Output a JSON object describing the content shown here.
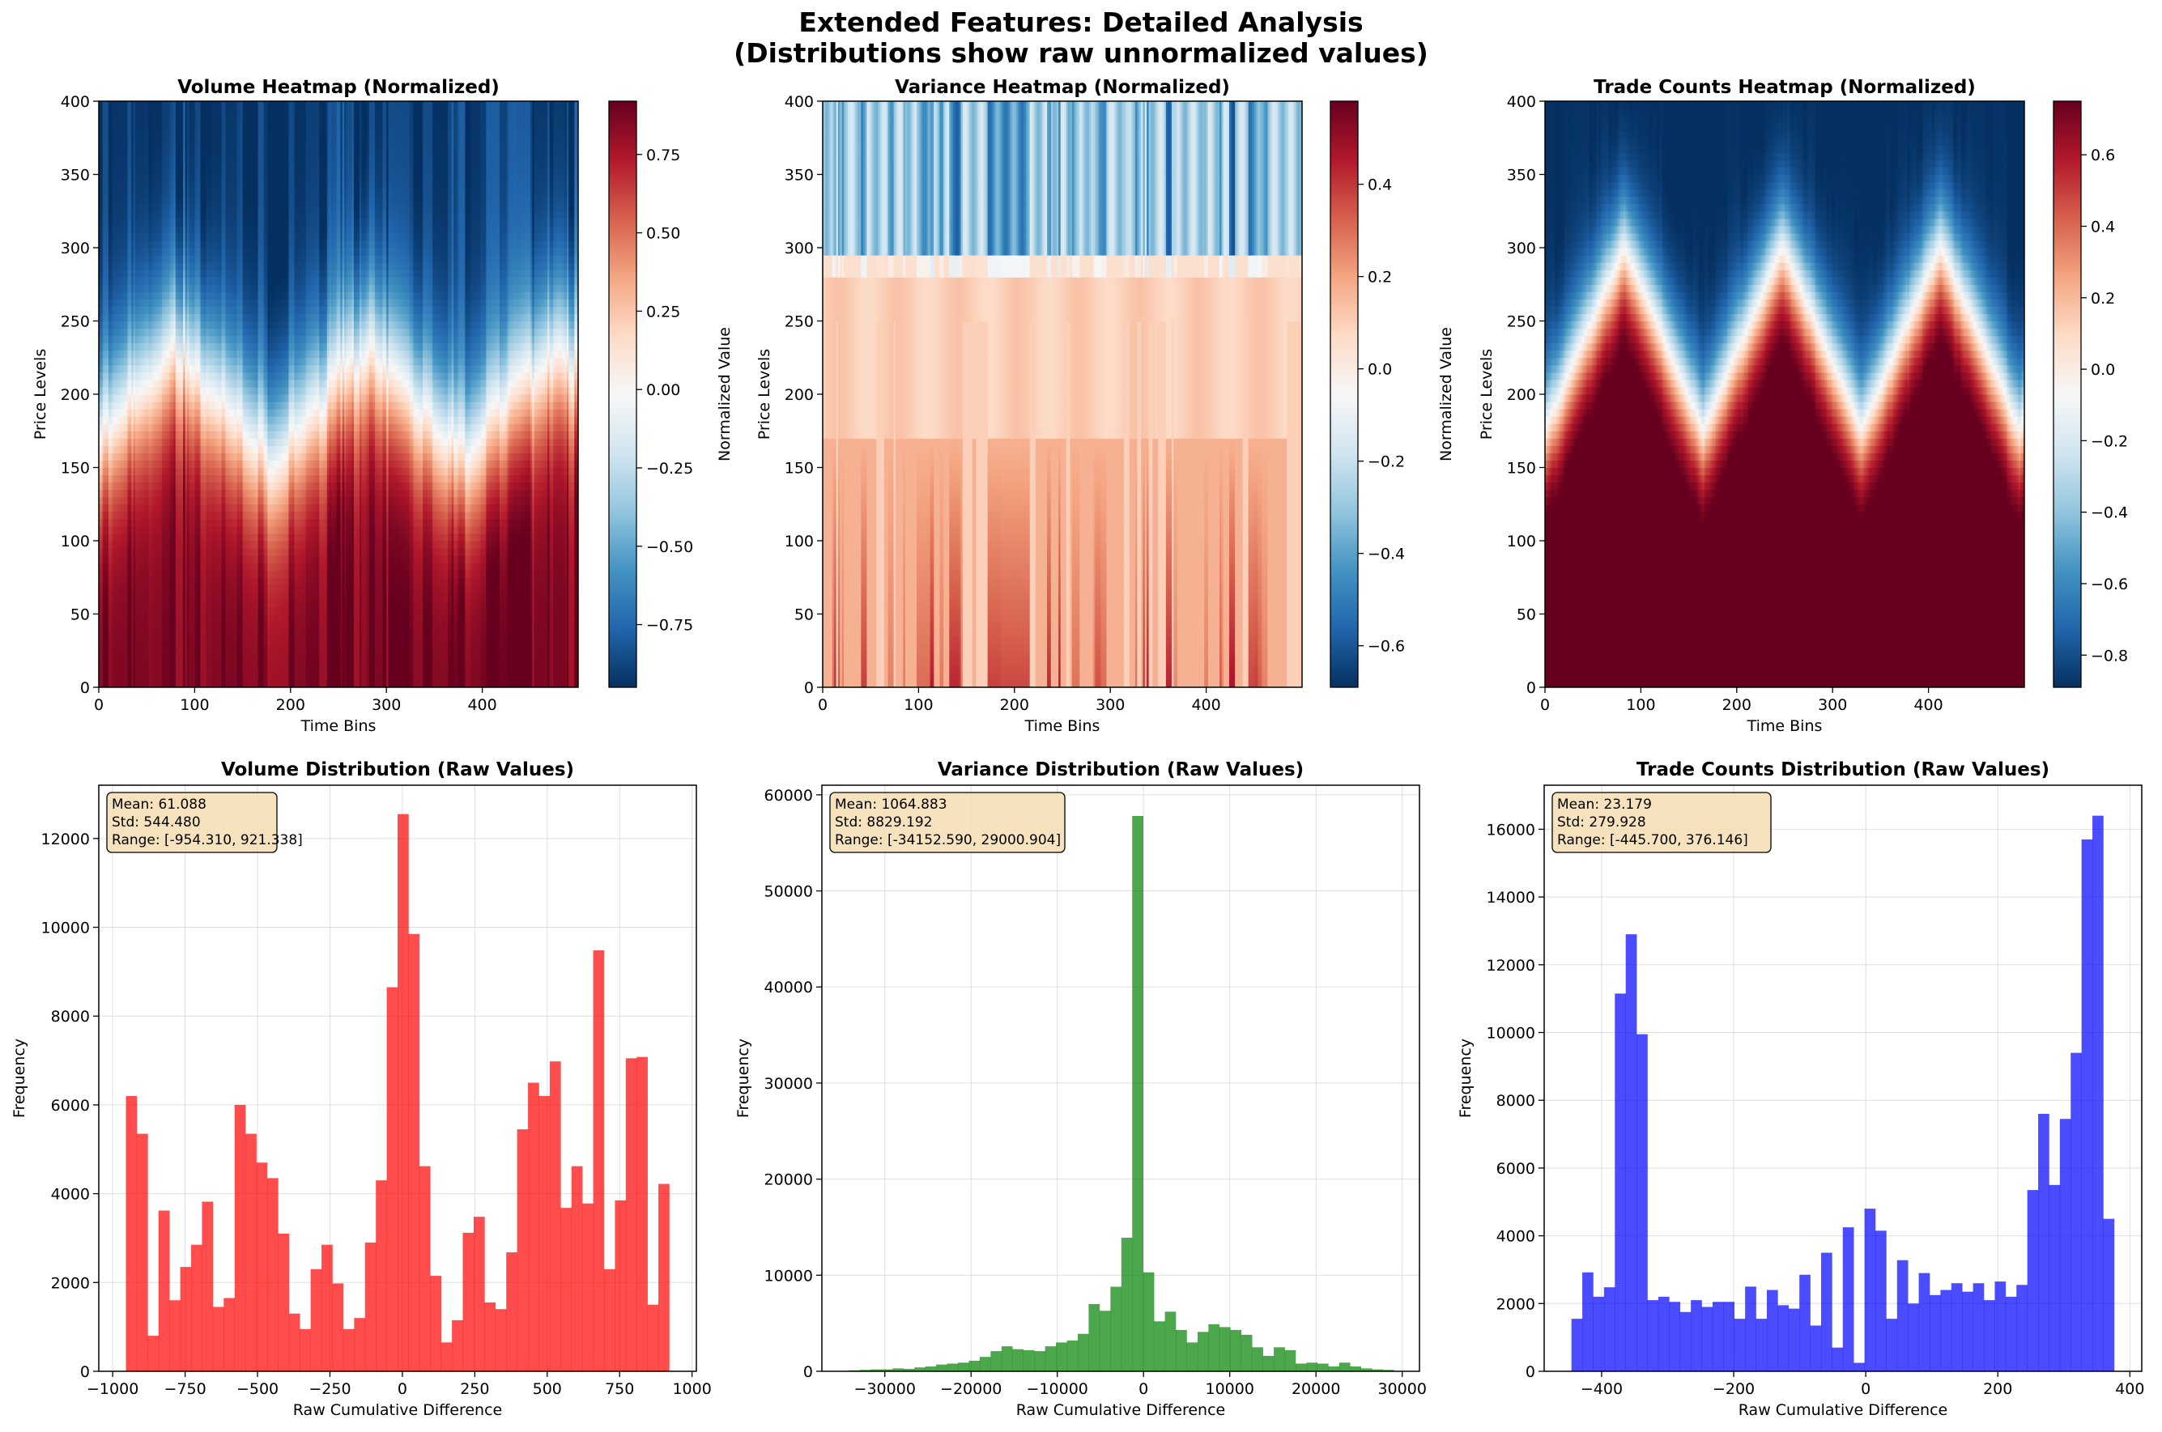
{
  "figure": {
    "title_line1": "Extended Features: Detailed Analysis",
    "title_line2": "(Distributions show raw unnormalized values)"
  },
  "colors": {
    "volume": "#ff0000",
    "variance": "#008000",
    "trade_counts": "#0000ff",
    "stats_box_fill": "#f5deb3",
    "colormap": "RdBu_r"
  },
  "heatmaps": [
    {
      "key": "volume",
      "title": "Volume Heatmap (Normalized)",
      "xlabel": "Time Bins",
      "ylabel": "Price Levels",
      "colorbar_label": "Normalized Value",
      "xlim": [
        0,
        500
      ],
      "ylim": [
        0,
        400
      ],
      "xticks": [
        0,
        100,
        200,
        300,
        400
      ],
      "yticks": [
        0,
        50,
        100,
        150,
        200,
        250,
        300,
        350,
        400
      ],
      "vmin": -0.95,
      "vmax": 0.92,
      "cbar_ticks": [
        -0.75,
        -0.5,
        -0.25,
        0.0,
        0.25,
        0.5,
        0.75
      ],
      "cbar_tick_labels": [
        "−0.75",
        "−0.50",
        "−0.25",
        "0.00",
        "0.25",
        "0.50",
        "0.75"
      ],
      "pattern": {
        "mode": "wave",
        "period": 200,
        "phase": 0.1,
        "center": 195,
        "amp": 38,
        "width": 95,
        "noise": 0.5,
        "seed": 11
      }
    },
    {
      "key": "variance",
      "title": "Variance Heatmap (Normalized)",
      "xlabel": "Time Bins",
      "ylabel": "Price Levels",
      "colorbar_label": "Normalized Value",
      "xlim": [
        0,
        500
      ],
      "ylim": [
        0,
        400
      ],
      "xticks": [
        0,
        100,
        200,
        300,
        400
      ],
      "yticks": [
        0,
        50,
        100,
        150,
        200,
        250,
        300,
        350,
        400
      ],
      "vmin": -0.69,
      "vmax": 0.58,
      "cbar_ticks": [
        -0.6,
        -0.4,
        -0.2,
        0.0,
        0.2,
        0.4
      ],
      "cbar_tick_labels": [
        "−0.6",
        "−0.4",
        "−0.2",
        "0.0",
        "0.2",
        "0.4"
      ],
      "pattern": {
        "mode": "variance",
        "period": 200,
        "phase": 0.1,
        "center": 250,
        "amp": 30,
        "width": 90,
        "noise": 0.6,
        "seed": 23
      }
    },
    {
      "key": "trade_counts",
      "title": "Trade Counts Heatmap (Normalized)",
      "xlabel": "Time Bins",
      "ylabel": "Price Levels",
      "colorbar_label": "Normalized Value",
      "xlim": [
        0,
        500
      ],
      "ylim": [
        0,
        400
      ],
      "xticks": [
        0,
        100,
        200,
        300,
        400
      ],
      "yticks": [
        0,
        50,
        100,
        150,
        200,
        250,
        300,
        350,
        400
      ],
      "vmin": -0.89,
      "vmax": 0.75,
      "cbar_ticks": [
        -0.8,
        -0.6,
        -0.4,
        -0.2,
        0.0,
        0.2,
        0.4,
        0.6
      ],
      "cbar_tick_labels": [
        "−0.8",
        "−0.6",
        "−0.4",
        "−0.2",
        "0.0",
        "0.2",
        "0.4",
        "0.6"
      ],
      "pattern": {
        "mode": "smooth",
        "period": 165,
        "phase": 0.0,
        "center": 235,
        "amp": 62,
        "width": 70,
        "noise": 0.08,
        "seed": 5
      }
    }
  ],
  "chart_data": [
    {
      "type": "bar",
      "title": "Volume Distribution (Raw Values)",
      "xlabel": "Raw Cumulative Difference",
      "ylabel": "Frequency",
      "color": "#ff0000",
      "xlim": [
        -1048,
        1015
      ],
      "ylim": [
        0,
        13200
      ],
      "xticks": [
        -1000,
        -750,
        -500,
        -250,
        0,
        250,
        500,
        750,
        1000
      ],
      "xtick_labels": [
        "−1000",
        "−750",
        "−500",
        "−250",
        "0",
        "250",
        "500",
        "750",
        "1000"
      ],
      "yticks": [
        0,
        2000,
        4000,
        6000,
        8000,
        10000,
        12000
      ],
      "ytick_labels": [
        "0",
        "2000",
        "4000",
        "6000",
        "8000",
        "10000",
        "12000"
      ],
      "bin_start": -954.31,
      "bin_end": 921.338,
      "values": [
        6200,
        5350,
        800,
        3620,
        1600,
        2350,
        2850,
        3820,
        1450,
        1650,
        6000,
        5350,
        4700,
        4350,
        3100,
        1300,
        950,
        2300,
        2850,
        1980,
        950,
        1200,
        2900,
        4300,
        8650,
        12550,
        9850,
        4620,
        2150,
        650,
        1150,
        3120,
        3480,
        1550,
        1400,
        2680,
        5450,
        6500,
        6200,
        6980,
        3680,
        4620,
        3780,
        9480,
        2300,
        3850,
        7050,
        7080,
        1500,
        4220
      ],
      "stats": {
        "mean": "Mean: 61.088",
        "std": "Std: 544.480",
        "range": "Range: [-954.310, 921.338]"
      }
    },
    {
      "type": "bar",
      "title": "Variance Distribution (Raw Values)",
      "xlabel": "Raw Cumulative Difference",
      "ylabel": "Frequency",
      "color": "#008000",
      "xlim": [
        -37300,
        32000
      ],
      "ylim": [
        0,
        61000
      ],
      "xticks": [
        -30000,
        -20000,
        -10000,
        0,
        10000,
        20000,
        30000
      ],
      "xtick_labels": [
        "−30000",
        "−20000",
        "−10000",
        "0",
        "10000",
        "20000",
        "30000"
      ],
      "yticks": [
        0,
        10000,
        20000,
        30000,
        40000,
        50000,
        60000
      ],
      "ytick_labels": [
        "0",
        "10000",
        "20000",
        "30000",
        "40000",
        "50000",
        "60000"
      ],
      "bin_start": -34152.59,
      "bin_end": 29000.904,
      "values": [
        100,
        150,
        200,
        200,
        300,
        250,
        400,
        500,
        700,
        800,
        900,
        1100,
        1500,
        2100,
        2600,
        2300,
        2200,
        2100,
        2600,
        3000,
        3200,
        3900,
        7000,
        6300,
        8800,
        13900,
        57800,
        10300,
        5200,
        6200,
        4300,
        3000,
        4100,
        4900,
        4600,
        4300,
        3800,
        2500,
        1600,
        2500,
        2200,
        800,
        900,
        800,
        500,
        900,
        500,
        300,
        200,
        150
      ],
      "stats": {
        "mean": "Mean: 1064.883",
        "std": "Std: 8829.192",
        "range": "Range: [-34152.590, 29000.904]"
      }
    },
    {
      "type": "bar",
      "title": "Trade Counts Distribution (Raw Values)",
      "xlabel": "Raw Cumulative Difference",
      "ylabel": "Frequency",
      "color": "#0000ff",
      "xlim": [
        -487,
        418
      ],
      "ylim": [
        0,
        17300
      ],
      "xticks": [
        -400,
        -200,
        0,
        200,
        400
      ],
      "xtick_labels": [
        "−400",
        "−200",
        "0",
        "200",
        "400"
      ],
      "yticks": [
        0,
        2000,
        4000,
        6000,
        8000,
        10000,
        12000,
        14000,
        16000
      ],
      "ytick_labels": [
        "0",
        "2000",
        "4000",
        "6000",
        "8000",
        "10000",
        "12000",
        "14000",
        "16000"
      ],
      "bin_start": -445.7,
      "bin_end": 376.146,
      "values": [
        1550,
        2920,
        2200,
        2480,
        11150,
        12900,
        9950,
        2100,
        2200,
        2050,
        1750,
        2100,
        1900,
        2050,
        2050,
        1550,
        2500,
        1550,
        2400,
        1950,
        1850,
        2850,
        1350,
        3500,
        700,
        4250,
        250,
        4800,
        4150,
        1550,
        3280,
        2000,
        2900,
        2250,
        2400,
        2600,
        2350,
        2600,
        2100,
        2650,
        2200,
        2550,
        5350,
        7600,
        5500,
        7450,
        9400,
        15700,
        16400,
        4500
      ],
      "stats": {
        "mean": "Mean: 23.179",
        "std": "Std: 279.928",
        "range": "Range: [-445.700, 376.146]"
      }
    }
  ]
}
